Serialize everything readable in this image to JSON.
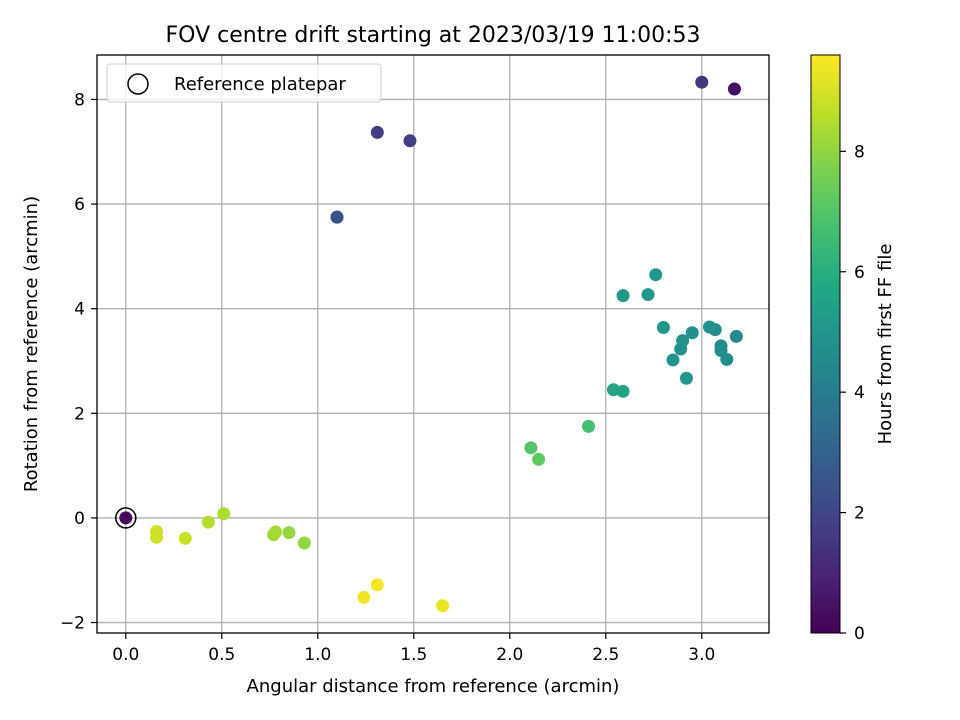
{
  "chart_data": {
    "type": "scatter",
    "title": "FOV centre drift starting at 2023/03/19 11:00:53",
    "xlabel": "Angular distance from reference (arcmin)",
    "ylabel": "Rotation from reference (arcmin)",
    "xlim": [
      -0.15,
      3.35
    ],
    "ylim": [
      -2.2,
      8.85
    ],
    "xticks": [
      0.0,
      0.5,
      1.0,
      1.5,
      2.0,
      2.5,
      3.0
    ],
    "xtick_labels": [
      "0.0",
      "0.5",
      "1.0",
      "1.5",
      "2.0",
      "2.5",
      "3.0"
    ],
    "yticks": [
      -2,
      0,
      2,
      4,
      6,
      8
    ],
    "ytick_labels": [
      "−2",
      "0",
      "2",
      "4",
      "6",
      "8"
    ],
    "grid": true,
    "legend": {
      "position": "upper-left",
      "entries": [
        {
          "label": "Reference platepar",
          "marker": "hollow-circle",
          "x": 0.0,
          "y": 0.0
        }
      ]
    },
    "colorbar": {
      "label": "Hours from first FF file",
      "colormap": "viridis",
      "min": 0,
      "max": 9.6,
      "ticks": [
        0,
        2,
        4,
        6,
        8
      ],
      "tick_labels": [
        "0",
        "2",
        "4",
        "6",
        "8"
      ]
    },
    "points": [
      {
        "x": 0.0,
        "y": 0.0,
        "c": 0.2
      },
      {
        "x": 3.17,
        "y": 8.2,
        "c": 0.4
      },
      {
        "x": 3.0,
        "y": 8.33,
        "c": 1.5
      },
      {
        "x": 1.31,
        "y": 7.37,
        "c": 1.7
      },
      {
        "x": 1.48,
        "y": 7.21,
        "c": 1.8
      },
      {
        "x": 1.1,
        "y": 5.75,
        "c": 2.4
      },
      {
        "x": 1.1,
        "y": 5.75,
        "c": 2.5
      },
      {
        "x": 3.18,
        "y": 3.47,
        "c": 4.5
      },
      {
        "x": 3.13,
        "y": 3.03,
        "c": 4.6
      },
      {
        "x": 3.1,
        "y": 3.29,
        "c": 4.6
      },
      {
        "x": 3.1,
        "y": 3.2,
        "c": 4.7
      },
      {
        "x": 3.07,
        "y": 3.6,
        "c": 4.7
      },
      {
        "x": 3.04,
        "y": 3.65,
        "c": 4.8
      },
      {
        "x": 2.95,
        "y": 3.54,
        "c": 4.8
      },
      {
        "x": 2.9,
        "y": 3.39,
        "c": 4.9
      },
      {
        "x": 2.89,
        "y": 3.23,
        "c": 4.9
      },
      {
        "x": 2.85,
        "y": 3.02,
        "c": 5.0
      },
      {
        "x": 2.92,
        "y": 2.67,
        "c": 5.0
      },
      {
        "x": 2.8,
        "y": 3.64,
        "c": 5.1
      },
      {
        "x": 2.76,
        "y": 4.65,
        "c": 5.1
      },
      {
        "x": 2.72,
        "y": 4.27,
        "c": 5.2
      },
      {
        "x": 2.59,
        "y": 4.25,
        "c": 5.2
      },
      {
        "x": 2.59,
        "y": 2.42,
        "c": 5.5
      },
      {
        "x": 2.54,
        "y": 2.45,
        "c": 5.6
      },
      {
        "x": 2.41,
        "y": 1.75,
        "c": 6.7
      },
      {
        "x": 2.11,
        "y": 1.34,
        "c": 7.0
      },
      {
        "x": 2.15,
        "y": 1.12,
        "c": 7.2
      },
      {
        "x": 0.93,
        "y": -0.48,
        "c": 8.0
      },
      {
        "x": 0.85,
        "y": -0.28,
        "c": 8.1
      },
      {
        "x": 0.77,
        "y": -0.32,
        "c": 8.2
      },
      {
        "x": 0.78,
        "y": -0.27,
        "c": 8.3
      },
      {
        "x": 0.51,
        "y": 0.08,
        "c": 8.4
      },
      {
        "x": 0.43,
        "y": -0.08,
        "c": 8.5
      },
      {
        "x": 0.31,
        "y": -0.39,
        "c": 8.8
      },
      {
        "x": 0.16,
        "y": -0.37,
        "c": 8.9
      },
      {
        "x": 0.16,
        "y": -0.26,
        "c": 8.9
      },
      {
        "x": 1.65,
        "y": -1.68,
        "c": 9.3
      },
      {
        "x": 1.24,
        "y": -1.52,
        "c": 9.4
      },
      {
        "x": 1.31,
        "y": -1.28,
        "c": 9.5
      }
    ]
  }
}
